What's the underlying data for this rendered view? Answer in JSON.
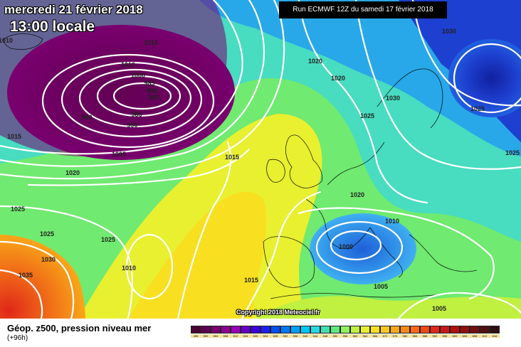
{
  "title": {
    "date": "mercredi 21 février 2018",
    "time": "13:00 locale"
  },
  "run_info": "Run ECMWF 12Z du samedi 17 février 2018",
  "copyright": "Copyright 2018 Meteociel.fr",
  "product": {
    "title": "Géop. z500, pression niveau mer",
    "lead_time": "(+96h)"
  },
  "colors": {
    "background": "#ffffff",
    "isobar": "#ffffff",
    "coastline": "#000000"
  },
  "scale": {
    "labels": [
      "496",
      "500",
      "504",
      "508",
      "512",
      "516",
      "520",
      "524",
      "528",
      "532",
      "536",
      "540",
      "544",
      "548",
      "552",
      "556",
      "560",
      "564",
      "568",
      "572",
      "576",
      "580",
      "584",
      "588",
      "592",
      "596",
      "600",
      "604",
      "608",
      "612",
      "616"
    ],
    "colors": [
      "#4a0034",
      "#5e0050",
      "#780070",
      "#8c0090",
      "#9a00b4",
      "#6400c8",
      "#3c00dc",
      "#1e20f0",
      "#0050f0",
      "#0078f8",
      "#00a0fa",
      "#00c8f8",
      "#28d8e0",
      "#40e0b0",
      "#60e880",
      "#90f060",
      "#c0f040",
      "#e8f030",
      "#f8e020",
      "#f8c820",
      "#f8a818",
      "#f88818",
      "#f86818",
      "#f04818",
      "#e02818",
      "#c81818",
      "#b01010",
      "#901010",
      "#701010",
      "#501010",
      "#301010"
    ]
  },
  "pressure_labels": [
    {
      "text": "1010"
    },
    {
      "text": "1015"
    },
    {
      "text": "1010"
    },
    {
      "text": "1000"
    },
    {
      "text": "985"
    },
    {
      "text": "990"
    },
    {
      "text": "980"
    },
    {
      "text": "980"
    },
    {
      "text": "985"
    },
    {
      "text": "990"
    },
    {
      "text": "1015"
    },
    {
      "text": "1005"
    },
    {
      "text": "1020"
    },
    {
      "text": "1015"
    },
    {
      "text": "1025"
    },
    {
      "text": "1025"
    },
    {
      "text": "1030"
    },
    {
      "text": "1035"
    },
    {
      "text": "1025"
    },
    {
      "text": "1010"
    },
    {
      "text": "1015"
    },
    {
      "text": "1020"
    },
    {
      "text": "1020"
    },
    {
      "text": "1030"
    },
    {
      "text": "1025"
    },
    {
      "text": "1030"
    },
    {
      "text": "1025"
    },
    {
      "text": "1025"
    },
    {
      "text": "1020"
    },
    {
      "text": "1010"
    },
    {
      "text": "1000"
    },
    {
      "text": "1005"
    },
    {
      "text": "1005"
    }
  ]
}
